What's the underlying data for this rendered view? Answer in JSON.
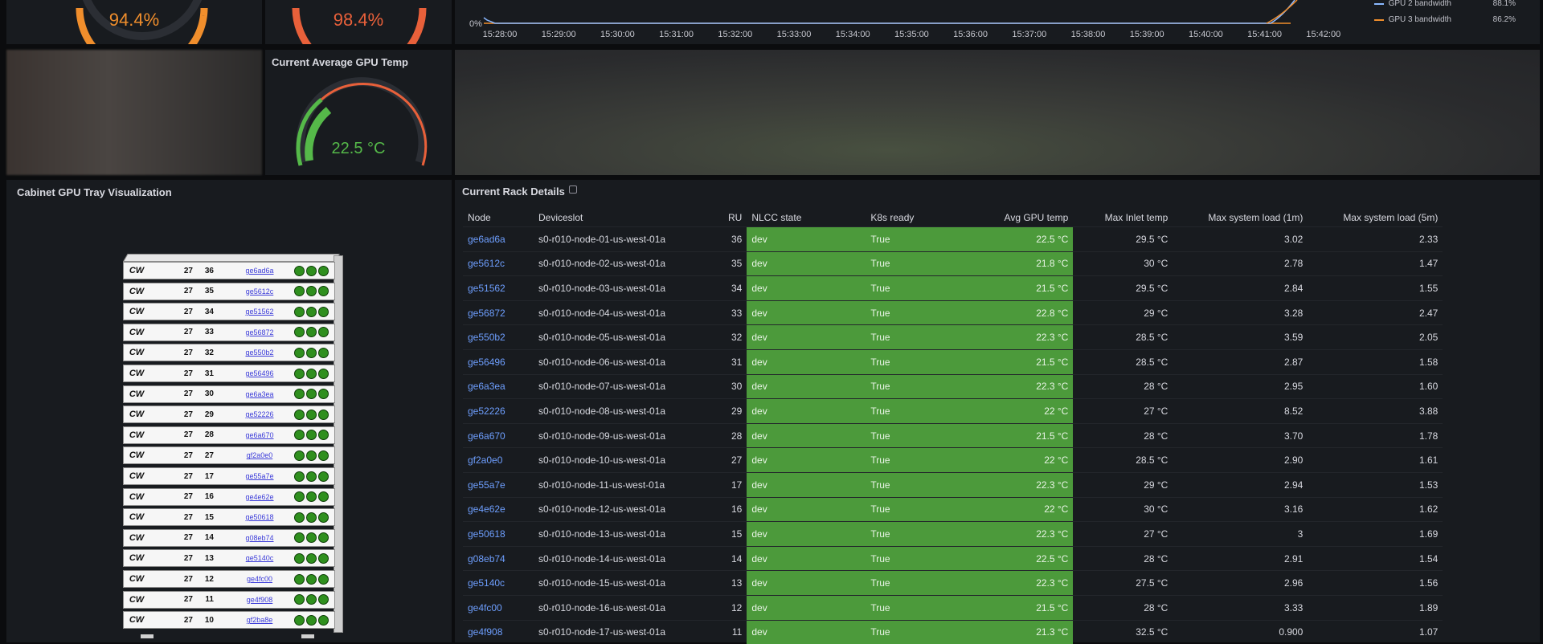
{
  "gauges_top": [
    {
      "value": "94.4%",
      "color": "#f08e2c"
    },
    {
      "value": "98.4%",
      "color": "#e8603a"
    }
  ],
  "gpu_temp_gauge": {
    "title": "Current Average GPU Temp",
    "value": "22.5 °C",
    "color": "#55b949"
  },
  "bandwidth_chart": {
    "y_tick": "0%",
    "x_ticks": [
      "15:28:00",
      "15:29:00",
      "15:30:00",
      "15:31:00",
      "15:32:00",
      "15:33:00",
      "15:34:00",
      "15:35:00",
      "15:36:00",
      "15:37:00",
      "15:38:00",
      "15:39:00",
      "15:40:00",
      "15:41:00",
      "15:42:00"
    ],
    "legend": [
      {
        "name": "GPU 2 bandwidth",
        "value": "88.1%",
        "color": "#8ab8ff"
      },
      {
        "name": "GPU 3 bandwidth",
        "value": "86.2%",
        "color": "#f08e2c"
      }
    ]
  },
  "cabinet": {
    "title": "Cabinet GPU Tray Visualization",
    "rows": [
      {
        "cab": "27",
        "ru": "36",
        "node": "ge6ad6a"
      },
      {
        "cab": "27",
        "ru": "35",
        "node": "ge5612c"
      },
      {
        "cab": "27",
        "ru": "34",
        "node": "ge51562"
      },
      {
        "cab": "27",
        "ru": "33",
        "node": "ge56872"
      },
      {
        "cab": "27",
        "ru": "32",
        "node": "ge550b2"
      },
      {
        "cab": "27",
        "ru": "31",
        "node": "ge56496"
      },
      {
        "cab": "27",
        "ru": "30",
        "node": "ge6a3ea"
      },
      {
        "cab": "27",
        "ru": "29",
        "node": "ge52226"
      },
      {
        "cab": "27",
        "ru": "28",
        "node": "ge6a670"
      },
      {
        "cab": "27",
        "ru": "27",
        "node": "gf2a0e0"
      },
      {
        "cab": "27",
        "ru": "17",
        "node": "ge55a7e"
      },
      {
        "cab": "27",
        "ru": "16",
        "node": "ge4e62e"
      },
      {
        "cab": "27",
        "ru": "15",
        "node": "ge50618"
      },
      {
        "cab": "27",
        "ru": "14",
        "node": "g08eb74"
      },
      {
        "cab": "27",
        "ru": "13",
        "node": "ge5140c"
      },
      {
        "cab": "27",
        "ru": "12",
        "node": "ge4fc00"
      },
      {
        "cab": "27",
        "ru": "11",
        "node": "ge4f908"
      },
      {
        "cab": "27",
        "ru": "10",
        "node": "gf2ba8e"
      }
    ],
    "logo": "CW"
  },
  "rack_details": {
    "title": "Current Rack Details",
    "columns": [
      "Node",
      "Deviceslot",
      "RU",
      "NLCC state",
      "K8s ready",
      "Avg GPU temp",
      "Max Inlet temp",
      "Max system load (1m)",
      "Max system load (5m)"
    ],
    "rows": [
      [
        "ge6ad6a",
        "s0-r010-node-01-us-west-01a",
        "36",
        "dev",
        "True",
        "22.5 °C",
        "29.5 °C",
        "3.02",
        "2.33"
      ],
      [
        "ge5612c",
        "s0-r010-node-02-us-west-01a",
        "35",
        "dev",
        "True",
        "21.8 °C",
        "30 °C",
        "2.78",
        "1.47"
      ],
      [
        "ge51562",
        "s0-r010-node-03-us-west-01a",
        "34",
        "dev",
        "True",
        "21.5 °C",
        "29.5 °C",
        "2.84",
        "1.55"
      ],
      [
        "ge56872",
        "s0-r010-node-04-us-west-01a",
        "33",
        "dev",
        "True",
        "22.8 °C",
        "29 °C",
        "3.28",
        "2.47"
      ],
      [
        "ge550b2",
        "s0-r010-node-05-us-west-01a",
        "32",
        "dev",
        "True",
        "22.3 °C",
        "28.5 °C",
        "3.59",
        "2.05"
      ],
      [
        "ge56496",
        "s0-r010-node-06-us-west-01a",
        "31",
        "dev",
        "True",
        "21.5 °C",
        "28.5 °C",
        "2.87",
        "1.58"
      ],
      [
        "ge6a3ea",
        "s0-r010-node-07-us-west-01a",
        "30",
        "dev",
        "True",
        "22.3 °C",
        "28 °C",
        "2.95",
        "1.60"
      ],
      [
        "ge52226",
        "s0-r010-node-08-us-west-01a",
        "29",
        "dev",
        "True",
        "22 °C",
        "27 °C",
        "8.52",
        "3.88"
      ],
      [
        "ge6a670",
        "s0-r010-node-09-us-west-01a",
        "28",
        "dev",
        "True",
        "21.5 °C",
        "28 °C",
        "3.70",
        "1.78"
      ],
      [
        "gf2a0e0",
        "s0-r010-node-10-us-west-01a",
        "27",
        "dev",
        "True",
        "22 °C",
        "28.5 °C",
        "2.90",
        "1.61"
      ],
      [
        "ge55a7e",
        "s0-r010-node-11-us-west-01a",
        "17",
        "dev",
        "True",
        "22.3 °C",
        "29 °C",
        "2.94",
        "1.53"
      ],
      [
        "ge4e62e",
        "s0-r010-node-12-us-west-01a",
        "16",
        "dev",
        "True",
        "22 °C",
        "30 °C",
        "3.16",
        "1.62"
      ],
      [
        "ge50618",
        "s0-r010-node-13-us-west-01a",
        "15",
        "dev",
        "True",
        "22.3 °C",
        "27 °C",
        "3",
        "1.69"
      ],
      [
        "g08eb74",
        "s0-r010-node-14-us-west-01a",
        "14",
        "dev",
        "True",
        "22.5 °C",
        "28 °C",
        "2.91",
        "1.54"
      ],
      [
        "ge5140c",
        "s0-r010-node-15-us-west-01a",
        "13",
        "dev",
        "True",
        "22.3 °C",
        "27.5 °C",
        "2.96",
        "1.56"
      ],
      [
        "ge4fc00",
        "s0-r010-node-16-us-west-01a",
        "12",
        "dev",
        "True",
        "21.5 °C",
        "28 °C",
        "3.33",
        "1.89"
      ],
      [
        "ge4f908",
        "s0-r010-node-17-us-west-01a",
        "11",
        "dev",
        "True",
        "21.3 °C",
        "32.5 °C",
        "0.900",
        "1.07"
      ]
    ]
  }
}
